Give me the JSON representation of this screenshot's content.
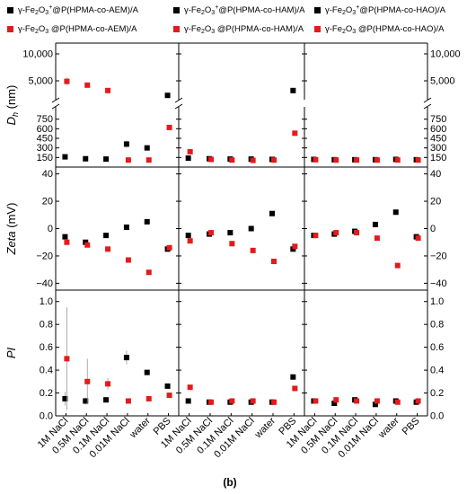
{
  "caption": "(b)",
  "legend": [
    {
      "name": "γ-Fe2O3+@P(HPMA-co-AEM)/A",
      "color": "#000000"
    },
    {
      "name": "γ-Fe2O3+@P(HPMA-co-HAM)/A",
      "color": "#000000"
    },
    {
      "name": "γ-Fe2O3+@P(HPMA-co-HAO)/A",
      "color": "#000000"
    },
    {
      "name": "γ-Fe2O3 @P(HPMA-co-AEM)/A",
      "color": "#e41a1c"
    },
    {
      "name": "γ-Fe2O3 @P(HPMA-co-HAM)/A",
      "color": "#e41a1c"
    },
    {
      "name": "γ-Fe2O3 @P(HPMA-co-HAO)/A",
      "color": "#e41a1c"
    }
  ],
  "chart_data": {
    "type": "scatter",
    "categories": [
      "1M NaCl",
      "0.5M NaCl",
      "0.1M NaCl",
      "0.01M NaCl",
      "water",
      "PBS"
    ],
    "columns": [
      "P(HPMA-co-AEM)/A",
      "P(HPMA-co-HAM)/A",
      "P(HPMA-co-HAO)/A"
    ],
    "rows": [
      {
        "ylabel": "Dh (nm)",
        "broken_axis": true,
        "upper_range": [
          2000,
          12000
        ],
        "upper_ticks": [
          5000,
          10000
        ],
        "upper_tick_labels": [
          "5,000",
          "10,000"
        ],
        "lower_range": [
          0,
          900
        ],
        "lower_ticks": [
          150,
          300,
          450,
          600,
          750
        ],
        "lower_tick_labels": [
          "150",
          "300",
          "450",
          "600",
          "750"
        ]
      },
      {
        "ylabel": "Zeta (mV)",
        "range": [
          -45,
          45
        ],
        "ticks": [
          -40,
          -20,
          0,
          20,
          40
        ],
        "tick_labels": [
          "−40",
          "−20",
          "0",
          "20",
          "40"
        ]
      },
      {
        "ylabel": "PI",
        "range": [
          0,
          1.1
        ],
        "ticks": [
          0,
          0.2,
          0.4,
          0.6,
          0.8,
          1.0
        ],
        "tick_labels": [
          "0.0",
          "0.2",
          "0.4",
          "0.6",
          "0.8",
          "1.0"
        ]
      }
    ],
    "series": [
      {
        "name": "γ-Fe2O3+@P(HPMA-co-AEM)/A",
        "color": "#000000",
        "column": 0,
        "Dh": [
          160,
          130,
          125,
          360,
          300,
          2300
        ],
        "Dh_err": [
          25,
          10,
          10,
          60,
          20,
          200
        ],
        "zeta": [
          -6,
          -10,
          -5,
          1,
          5,
          -15
        ],
        "zeta_err": [
          1,
          1,
          1,
          1,
          1,
          1
        ],
        "PI": [
          0.15,
          0.13,
          0.14,
          0.51,
          0.38,
          0.26
        ],
        "PI_err": [
          0.06,
          0.03,
          0.02,
          0.06,
          0.02,
          0.02
        ]
      },
      {
        "name": "γ-Fe2O3 @P(HPMA-co-AEM)/A",
        "color": "#e41a1c",
        "column": 0,
        "Dh": [
          4900,
          4200,
          3200,
          110,
          110,
          620
        ],
        "Dh_err": [
          700,
          450,
          150,
          10,
          10,
          30
        ],
        "zeta": [
          -10,
          -12,
          -15,
          -23,
          -32,
          -14
        ],
        "zeta_err": [
          1,
          1,
          1,
          1,
          1,
          1
        ],
        "PI": [
          0.5,
          0.3,
          0.28,
          0.13,
          0.15,
          0.18
        ],
        "PI_err": [
          0.45,
          0.2,
          0.05,
          0.02,
          0.02,
          0.02
        ]
      },
      {
        "name": "γ-Fe2O3+@P(HPMA-co-HAM)/A",
        "color": "#000000",
        "column": 1,
        "Dh": [
          140,
          130,
          125,
          125,
          120,
          3200
        ],
        "Dh_err": [
          10,
          8,
          8,
          10,
          8,
          100
        ],
        "zeta": [
          -5,
          -4,
          -3,
          0,
          11,
          -15
        ],
        "zeta_err": [
          1,
          1,
          1,
          1,
          1,
          1
        ],
        "PI": [
          0.13,
          0.12,
          0.12,
          0.12,
          0.12,
          0.34
        ],
        "PI_err": [
          0.01,
          0.01,
          0.01,
          0.01,
          0.03,
          0.02
        ]
      },
      {
        "name": "γ-Fe2O3 @P(HPMA-co-HAM)/A",
        "color": "#e41a1c",
        "column": 1,
        "Dh": [
          240,
          120,
          110,
          105,
          110,
          530
        ],
        "Dh_err": [
          20,
          10,
          10,
          10,
          10,
          30
        ],
        "zeta": [
          -9,
          -3,
          -11,
          -16,
          -24,
          -13
        ],
        "zeta_err": [
          1,
          1,
          1,
          1,
          1,
          1
        ],
        "PI": [
          0.25,
          0.12,
          0.13,
          0.13,
          0.12,
          0.24
        ],
        "PI_err": [
          0.01,
          0.01,
          0.01,
          0.01,
          0.01,
          0.02
        ]
      },
      {
        "name": "γ-Fe2O3+@P(HPMA-co-HAO)/A",
        "color": "#000000",
        "column": 2,
        "Dh": [
          120,
          115,
          115,
          115,
          120,
          115
        ],
        "Dh_err": [
          10,
          8,
          8,
          8,
          8,
          8
        ],
        "zeta": [
          -5,
          -4,
          -2,
          3,
          12,
          -6
        ],
        "zeta_err": [
          1,
          1,
          1,
          1,
          1,
          1
        ],
        "PI": [
          0.13,
          0.11,
          0.14,
          0.1,
          0.13,
          0.12
        ],
        "PI_err": [
          0.01,
          0.01,
          0.01,
          0.01,
          0.01,
          0.01
        ]
      },
      {
        "name": "γ-Fe2O3 @P(HPMA-co-HAO)/A",
        "color": "#e41a1c",
        "column": 2,
        "Dh": [
          115,
          110,
          110,
          110,
          110,
          110
        ],
        "Dh_err": [
          8,
          8,
          8,
          8,
          8,
          8
        ],
        "zeta": [
          -5,
          -3,
          -3,
          -7,
          -27,
          -7
        ],
        "zeta_err": [
          1,
          1,
          1,
          1,
          1,
          1
        ],
        "PI": [
          0.13,
          0.14,
          0.13,
          0.13,
          0.12,
          0.13
        ],
        "PI_err": [
          0.01,
          0.01,
          0.01,
          0.01,
          0.01,
          0.01
        ]
      }
    ]
  }
}
